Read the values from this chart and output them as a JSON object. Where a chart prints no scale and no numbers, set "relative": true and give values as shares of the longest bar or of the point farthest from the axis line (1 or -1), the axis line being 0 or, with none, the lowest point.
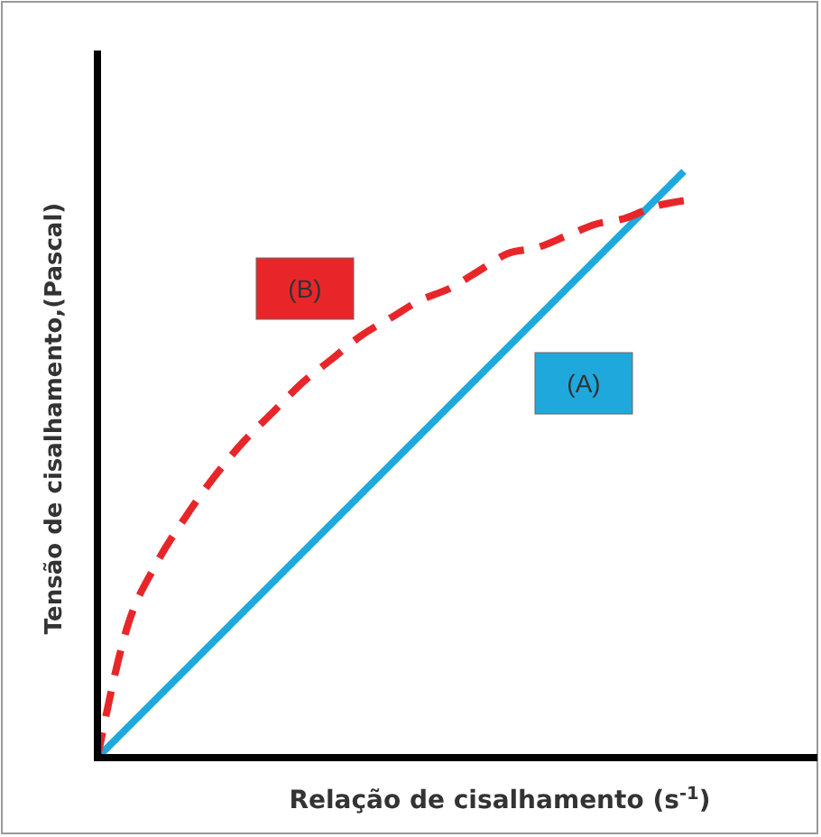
{
  "chart_data": {
    "type": "line",
    "relative": true,
    "xlabel": "Relação de cisalhamento (s$^{-1}$)",
    "ylabel": "Tensão de cisalhamento,(Pascal)",
    "legend": false,
    "categories": [
      null,
      null,
      null,
      null,
      null,
      null,
      null,
      null,
      null,
      null,
      null,
      null,
      null,
      null,
      null,
      null,
      null,
      null,
      null,
      null,
      null
    ],
    "series": [
      {
        "name": "(A)",
        "color": "#1fa8dc",
        "line_style": "solid",
        "values": [
          0,
          0.05,
          0.1,
          0.15,
          0.2,
          0.25,
          0.3,
          0.35,
          0.4,
          0.45,
          0.5,
          0.55,
          0.6,
          0.65,
          0.7,
          0.75,
          0.8,
          0.85,
          0.9,
          0.95,
          1
        ]
      },
      {
        "name": "(B)",
        "color": "#e8262a",
        "line_style": "dashed",
        "values": [
          0,
          0.22,
          0.33,
          0.41,
          0.48,
          0.54,
          0.59,
          0.64,
          0.68,
          0.72,
          0.75,
          0.78,
          0.8,
          0.83,
          0.86,
          0.87,
          0.89,
          0.91,
          0.92,
          0.94,
          0.95
        ]
      }
    ]
  }
}
